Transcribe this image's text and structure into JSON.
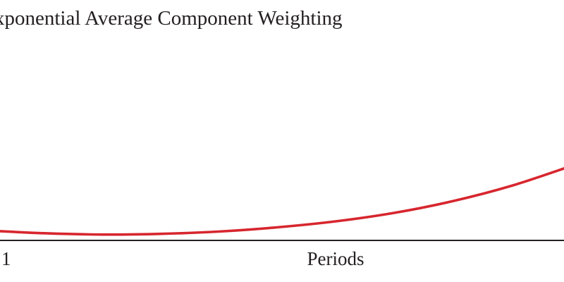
{
  "chart_data": {
    "type": "line",
    "title": "xponential Average Component Weighting",
    "xlabel": "Periods",
    "ylabel": "",
    "x_tick_labels": [
      "1"
    ],
    "x": [
      1,
      2,
      3,
      4,
      5,
      6,
      7,
      8,
      9,
      10,
      11
    ],
    "series": [
      {
        "values": [
          0.35,
          0.11,
          0.0,
          0.06,
          0.26,
          0.62,
          1.13,
          1.85,
          2.85,
          4.15,
          5.8
        ],
        "color": "#d7262e"
      }
    ],
    "ylim": [
      -0.5,
      20
    ],
    "grid": false,
    "legend": "none",
    "axis_color": "#231f20"
  }
}
